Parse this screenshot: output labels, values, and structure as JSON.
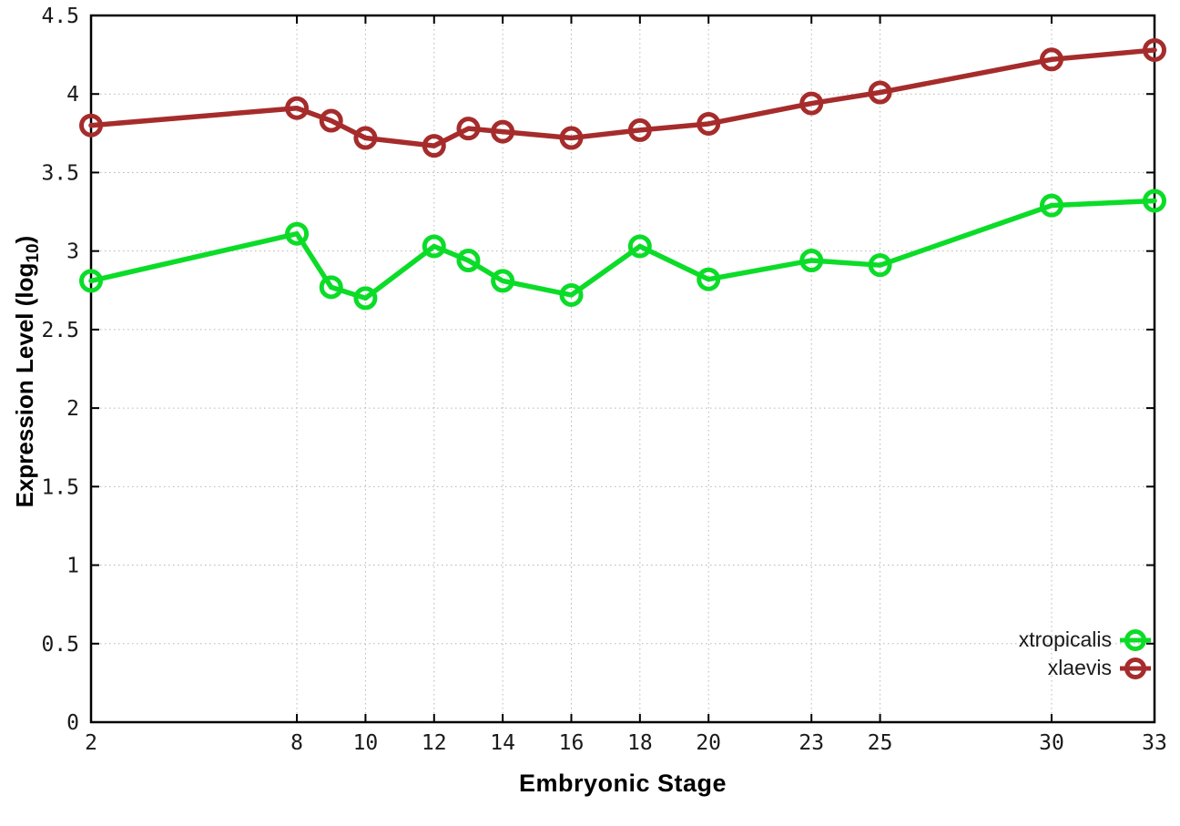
{
  "chart_data": {
    "type": "line",
    "title": "",
    "xlabel": "Embryonic Stage",
    "ylabel": "Expression Level (log10)",
    "ylabel_parts": {
      "main": "Expression Level (log",
      "sub": "10",
      "close": ")"
    },
    "xlim": [
      2,
      33
    ],
    "ylim": [
      0,
      4.5
    ],
    "grid": true,
    "legend_position": "bottom-right",
    "x_ticks": [
      2,
      8,
      10,
      12,
      14,
      16,
      18,
      20,
      23,
      25,
      30,
      33
    ],
    "x_tick_labels": [
      "2",
      "8",
      "10",
      "12",
      "14",
      "16",
      "18",
      "20",
      "23",
      "25",
      "30",
      "33"
    ],
    "y_ticks": [
      0,
      0.5,
      1,
      1.5,
      2,
      2.5,
      3,
      3.5,
      4,
      4.5
    ],
    "y_tick_labels": [
      "0",
      "0.5",
      "1",
      "1.5",
      "2",
      "2.5",
      "3",
      "3.5",
      "4",
      "4.5"
    ],
    "x": [
      2,
      8,
      9,
      10,
      12,
      13,
      14,
      16,
      18,
      20,
      23,
      25,
      30,
      33
    ],
    "series": [
      {
        "name": "xtropicalis",
        "color": "#0bdc28",
        "values": [
          2.81,
          3.11,
          2.77,
          2.7,
          3.03,
          2.94,
          2.81,
          2.72,
          3.03,
          2.82,
          2.94,
          2.91,
          3.29,
          3.32
        ]
      },
      {
        "name": "xlaevis",
        "color": "#a62c2c",
        "values": [
          3.8,
          3.91,
          3.83,
          3.72,
          3.67,
          3.78,
          3.76,
          3.72,
          3.77,
          3.81,
          3.94,
          4.01,
          4.22,
          4.28
        ]
      }
    ]
  },
  "style": {
    "border_color": "#000000",
    "grid_color": "#b5b5b5",
    "tick_label_color": "#1a1a1a"
  }
}
